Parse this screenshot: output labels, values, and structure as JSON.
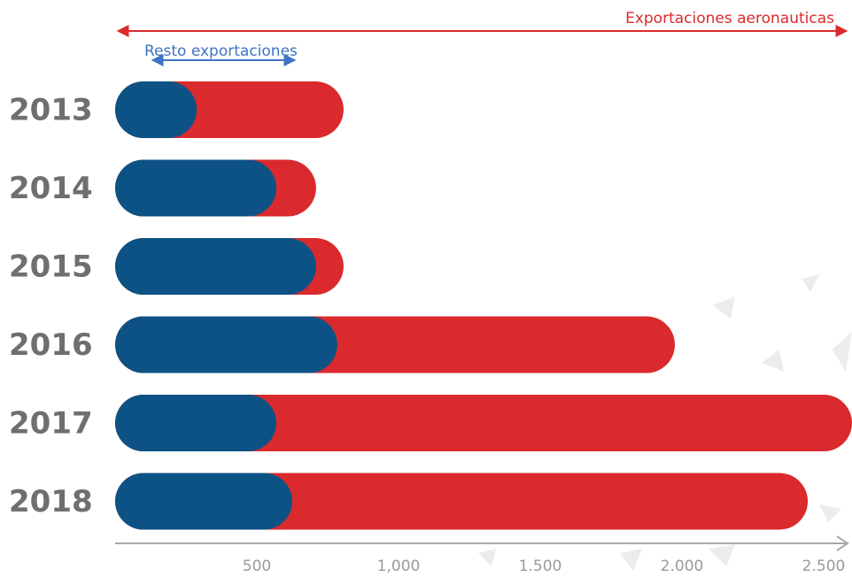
{
  "chart_data": {
    "type": "bar",
    "categories": [
      "2013",
      "2014",
      "2015",
      "2016",
      "2017",
      "2018"
    ],
    "series": [
      {
        "name": "Exportaciones aeronauticas",
        "color": "#da2a2e",
        "values": [
          806,
          709,
          806,
          1975,
          2600,
          2444
        ]
      },
      {
        "name": "Resto exportaciones",
        "color": "#0d5285",
        "values": [
          288,
          569,
          709,
          784,
          569,
          625
        ]
      }
    ],
    "xlim": [
      0,
      2600
    ],
    "xticks": [
      500,
      {
        "value": 1000,
        "label": "1,000"
      },
      {
        "value": 1500,
        "label": "1.500"
      },
      {
        "value": 2000,
        "label": "2.000"
      },
      {
        "value": 2500,
        "label": "2.500"
      }
    ]
  }
}
